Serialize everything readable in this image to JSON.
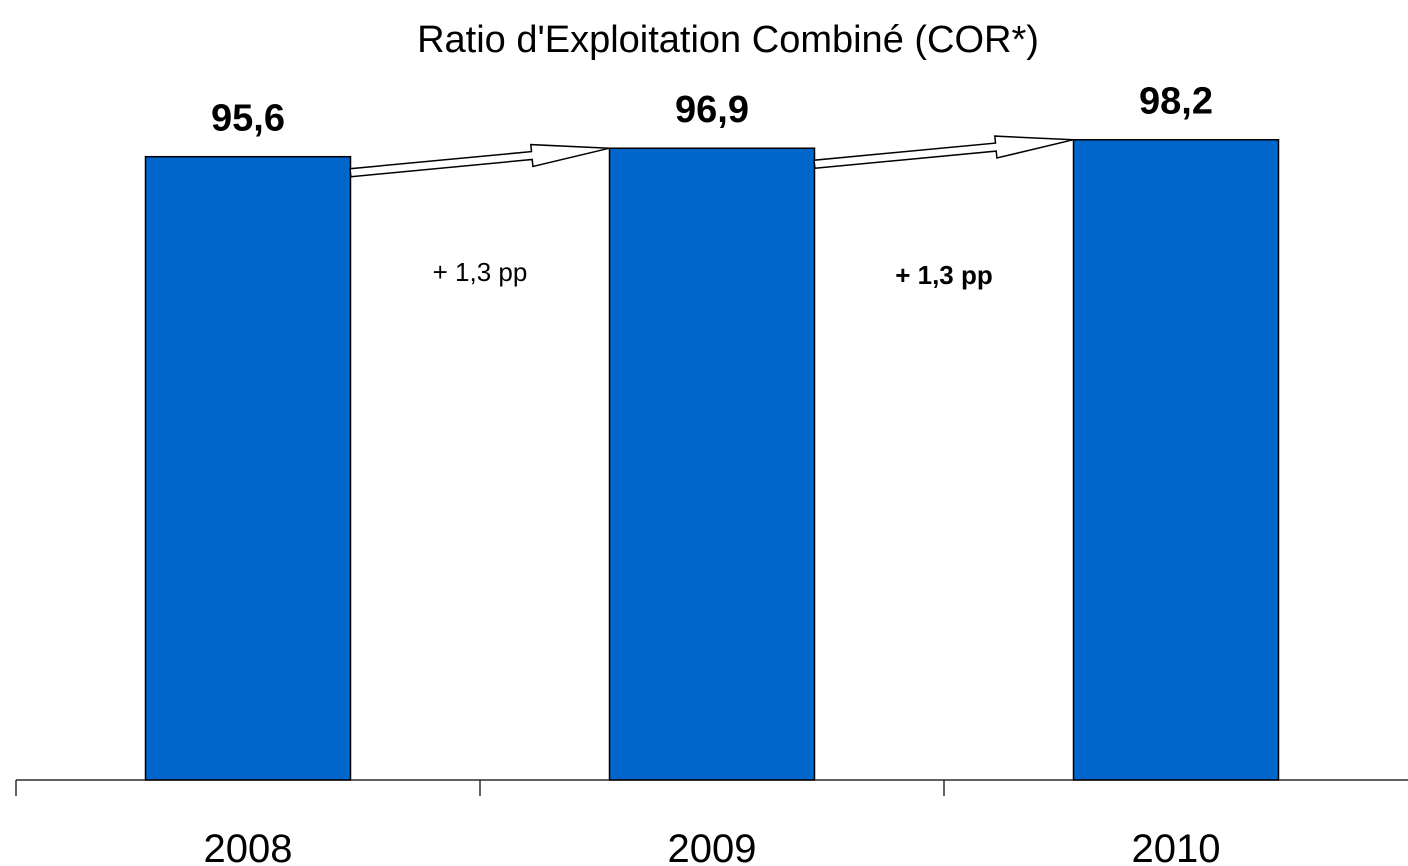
{
  "chart_data": {
    "type": "bar",
    "title": "Ratio d'Exploitation Combiné (COR*)",
    "categories": [
      "2008",
      "2009",
      "2010"
    ],
    "values": [
      95.6,
      96.9,
      98.2
    ],
    "value_labels": [
      "95,6",
      "96,9",
      "98,2"
    ],
    "ylim": [
      0,
      100
    ],
    "xlabel": "",
    "ylabel": "",
    "grid": false,
    "bar_color": "#0066CC",
    "annotations": [
      {
        "from": "2008",
        "to": "2009",
        "text": "+ 1,3 pp",
        "bold": false
      },
      {
        "from": "2009",
        "to": "2010",
        "text": "+ 1,3 pp",
        "bold": true
      }
    ]
  }
}
